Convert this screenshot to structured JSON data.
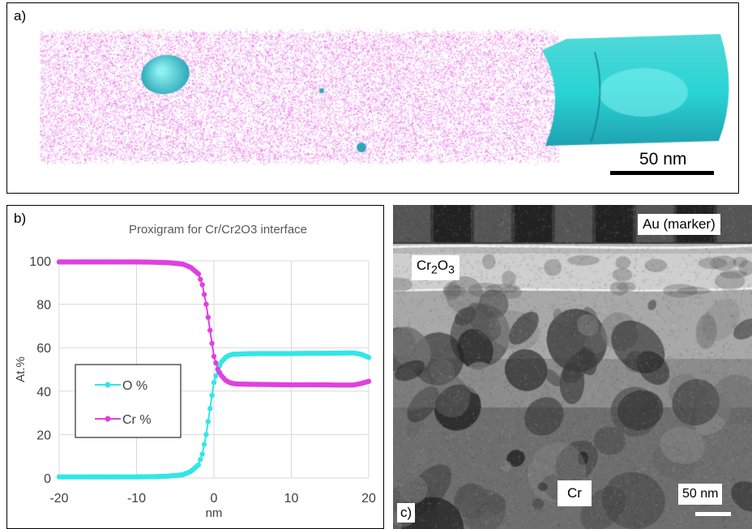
{
  "panel_a": {
    "label": "a)",
    "scale_bar": "50 nm",
    "colors": {
      "cr_atoms": "#e040e0",
      "oxide_isosurface": "#2ad4d4"
    }
  },
  "panel_b": {
    "label": "b)"
  },
  "panel_c": {
    "label": "c)",
    "labels": {
      "au": "Au (marker)",
      "cr2o3_base": "Cr",
      "cr2o3_sub1": "2",
      "cr2o3_mid": "O",
      "cr2o3_sub2": "3",
      "cr": "Cr"
    },
    "scale_bar": "50 nm"
  },
  "chart_data": {
    "type": "scatter",
    "title": "Proxigram for Cr/Cr2O3 interface",
    "xlabel": "nm",
    "ylabel": "At.%",
    "xlim": [
      -20,
      20
    ],
    "ylim": [
      0,
      100
    ],
    "xticks": [
      -20,
      -10,
      0,
      10,
      20
    ],
    "yticks": [
      0,
      20,
      40,
      60,
      80,
      100
    ],
    "grid": true,
    "legend_position": "left-middle",
    "series": [
      {
        "name": "O %",
        "color": "#33e6e6",
        "x": [
          -20,
          -18,
          -16,
          -14,
          -12,
          -10,
          -8,
          -6,
          -4,
          -3,
          -2,
          -1.5,
          -1,
          -0.5,
          0,
          0.5,
          1,
          1.5,
          2,
          2.5,
          3,
          4,
          6,
          8,
          10,
          12,
          14,
          16,
          18,
          19,
          20
        ],
        "y": [
          0.5,
          0.5,
          0.5,
          0.5,
          0.5,
          0.5,
          0.6,
          0.8,
          1.5,
          3,
          6,
          11,
          20,
          32,
          44,
          50,
          53.5,
          55.5,
          56.5,
          57,
          57,
          57.2,
          57.3,
          57.3,
          57.3,
          57.4,
          57.4,
          57.5,
          57.6,
          57,
          55.5
        ]
      },
      {
        "name": "Cr %",
        "color": "#e040e0",
        "x": [
          -20,
          -18,
          -16,
          -14,
          -12,
          -10,
          -8,
          -6,
          -4,
          -3,
          -2,
          -1.5,
          -1,
          -0.5,
          0,
          0.5,
          1,
          1.5,
          2,
          2.5,
          3,
          4,
          6,
          8,
          10,
          12,
          14,
          16,
          18,
          19,
          20
        ],
        "y": [
          99.5,
          99.5,
          99.5,
          99.5,
          99.5,
          99.5,
          99.4,
          99.2,
          98.5,
          97,
          94,
          89,
          80,
          68,
          56,
          50,
          47,
          45,
          44,
          43.5,
          43.3,
          43.2,
          43.1,
          43,
          42.9,
          42.9,
          42.9,
          42.8,
          42.8,
          43.5,
          44.5
        ]
      }
    ]
  }
}
